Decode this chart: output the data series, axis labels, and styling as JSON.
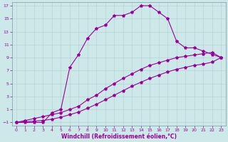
{
  "title": "",
  "xlabel": "Windchill (Refroidissement éolien,°C)",
  "bg_color": "#cde8e8",
  "line_color": "#990099",
  "grid_color": "#b0d0d0",
  "xlim": [
    -0.5,
    23.5
  ],
  "ylim": [
    -1.5,
    17.5
  ],
  "xticks": [
    0,
    1,
    2,
    3,
    4,
    5,
    6,
    7,
    8,
    9,
    10,
    11,
    12,
    13,
    14,
    15,
    16,
    17,
    18,
    19,
    20,
    21,
    22,
    23
  ],
  "yticks": [
    -1,
    1,
    3,
    5,
    7,
    9,
    11,
    13,
    15,
    17
  ],
  "curve_x": [
    0,
    1,
    2,
    3,
    4,
    5,
    6,
    7,
    8,
    9,
    10,
    11,
    12,
    13,
    14,
    15,
    16,
    17,
    18,
    19,
    20,
    21,
    22,
    23
  ],
  "curve_y": [
    -1,
    -1,
    -1,
    -1,
    0.5,
    1,
    7.5,
    9.5,
    12,
    13.5,
    14,
    15.5,
    15.5,
    16,
    17,
    17,
    16,
    15,
    11.5,
    10.5,
    10.5,
    10,
    9.5,
    9
  ],
  "line2_x": [
    0,
    1,
    2,
    3,
    4,
    5,
    6,
    7,
    8,
    9,
    10,
    11,
    12,
    13,
    14,
    15,
    16,
    17,
    18,
    19,
    20,
    21,
    22,
    23
  ],
  "line2_y": [
    -1,
    -0.7,
    -0.4,
    -0.1,
    0.2,
    0.5,
    1.0,
    1.5,
    2.5,
    3.2,
    4.2,
    5.0,
    5.8,
    6.5,
    7.2,
    7.8,
    8.2,
    8.6,
    9.0,
    9.2,
    9.4,
    9.6,
    9.8,
    9
  ],
  "line3_x": [
    0,
    1,
    2,
    3,
    4,
    5,
    6,
    7,
    8,
    9,
    10,
    11,
    12,
    13,
    14,
    15,
    16,
    17,
    18,
    19,
    20,
    21,
    22,
    23
  ],
  "line3_y": [
    -1,
    -0.9,
    -0.8,
    -0.7,
    -0.5,
    -0.2,
    0.2,
    0.6,
    1.2,
    1.8,
    2.5,
    3.2,
    3.9,
    4.6,
    5.2,
    5.8,
    6.3,
    6.8,
    7.2,
    7.5,
    7.8,
    8.0,
    8.3,
    9
  ],
  "marker": "*",
  "markersize": 3,
  "linewidth": 0.8,
  "tick_fontsize": 4.5,
  "xlabel_fontsize": 5.5
}
